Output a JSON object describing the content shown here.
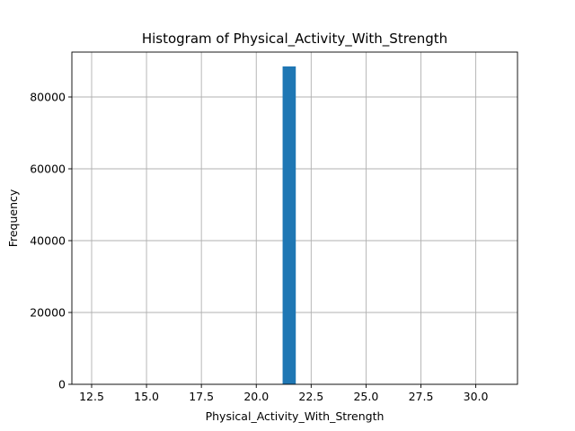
{
  "chart_data": {
    "type": "bar",
    "title": "Histogram of Physical_Activity_With_Strength",
    "xlabel": "Physical_Activity_With_Strength",
    "ylabel": "Frequency",
    "xlim": [
      11.6,
      31.9
    ],
    "ylim": [
      0,
      92500
    ],
    "x_ticks": [
      12.5,
      15.0,
      17.5,
      20.0,
      22.5,
      25.0,
      27.5,
      30.0
    ],
    "x_tick_labels": [
      "12.5",
      "15.0",
      "17.5",
      "20.0",
      "22.5",
      "25.0",
      "27.5",
      "30.0"
    ],
    "y_ticks": [
      0,
      20000,
      40000,
      60000,
      80000
    ],
    "y_tick_labels": [
      "0",
      "20000",
      "40000",
      "60000",
      "80000"
    ],
    "grid": true,
    "bar_color": "#1f77b4",
    "bins": [
      {
        "x0": 21.2,
        "x1": 21.8,
        "count": 88500
      }
    ]
  }
}
